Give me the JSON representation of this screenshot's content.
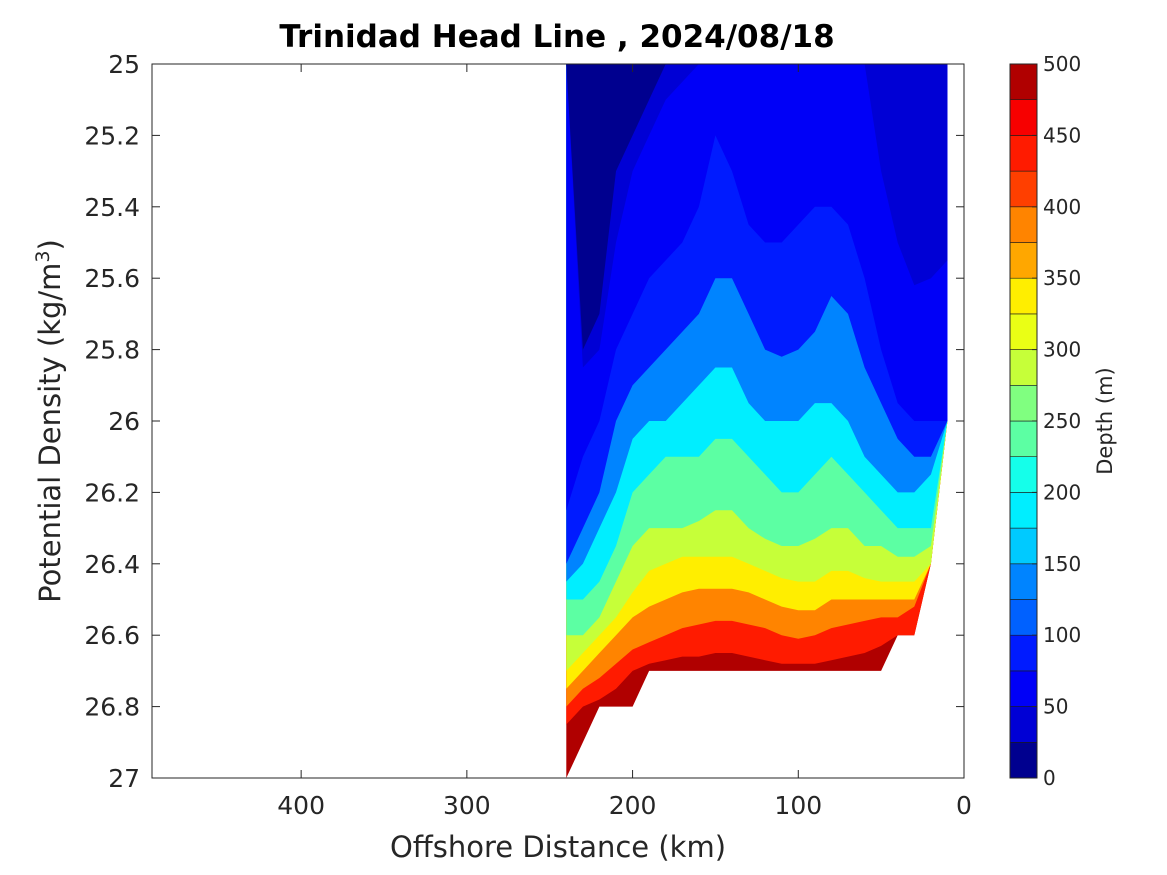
{
  "chart_data": {
    "type": "heatmap",
    "title": "Trinidad Head Line , 2024/08/18",
    "xlabel": "Offshore Distance (km)",
    "ylabel": "Potential Density (kg/m",
    "ylabel_sup": "3",
    "ylabel_close": ")",
    "xlim": [
      490,
      0
    ],
    "ylim": [
      25,
      27
    ],
    "x_reversed": true,
    "y_reversed": true,
    "xticks": [
      400,
      300,
      200,
      100,
      0
    ],
    "xtick_labels": [
      "400",
      "300",
      "200",
      "100",
      "0"
    ],
    "yticks": [
      25,
      25.2,
      25.4,
      25.6,
      25.8,
      26,
      26.2,
      26.4,
      26.6,
      26.8,
      27
    ],
    "ytick_labels": [
      "25",
      "25.2",
      "25.4",
      "25.6",
      "25.8",
      "26",
      "26.2",
      "26.4",
      "26.6",
      "26.8",
      "27"
    ],
    "colorbar": {
      "label": "Depth (m)",
      "range": [
        0,
        500
      ],
      "ticks": [
        0,
        50,
        100,
        150,
        200,
        250,
        300,
        350,
        400,
        450,
        500
      ],
      "tick_labels": [
        "0",
        "50",
        "100",
        "150",
        "200",
        "250",
        "300",
        "350",
        "400",
        "450",
        "500"
      ],
      "levels": [
        0,
        25,
        50,
        75,
        100,
        125,
        150,
        175,
        200,
        225,
        250,
        275,
        300,
        325,
        350,
        375,
        400,
        425,
        450,
        475,
        500
      ],
      "colors": [
        "#00008f",
        "#0000b0",
        "#0000d5",
        "#0000f7",
        "#001bff",
        "#003fff",
        "#0061ff",
        "#0084ff",
        "#00a7ff",
        "#00caff",
        "#00eeff",
        "#15ffea",
        "#39ffc6",
        "#5cffa3",
        "#80ff80",
        "#a3ff5c",
        "#c6ff39",
        "#eaff15",
        "#ffee00",
        "#ffca00",
        "#ffa700",
        "#ff8400",
        "#ff6100",
        "#ff3f00",
        "#ff1b00",
        "#f70000",
        "#d50000",
        "#b00000"
      ]
    },
    "stations_km": [
      240,
      230,
      220,
      210,
      200,
      190,
      180,
      170,
      160,
      150,
      140,
      130,
      120,
      110,
      100,
      90,
      80,
      70,
      60,
      50,
      40,
      30,
      20,
      10
    ],
    "bottom_density": [
      27.0,
      26.9,
      26.8,
      26.8,
      26.8,
      26.7,
      26.7,
      26.7,
      26.7,
      26.7,
      26.7,
      26.7,
      26.7,
      26.7,
      26.7,
      26.7,
      26.7,
      26.7,
      26.7,
      26.7,
      26.6,
      26.6,
      26.4,
      26.0
    ],
    "depth_isolines_m": {
      "25": [
        25.0,
        25.8,
        25.7,
        25.3,
        25.2,
        25.1,
        25.0,
        25.0,
        25.0,
        25.0,
        25.0,
        25.0,
        25.0,
        25.0,
        25.0,
        25.0,
        25.0,
        25.0,
        25.0,
        25.0,
        25.0,
        25.0,
        25.0,
        25.0
      ],
      "50": [
        25.0,
        25.85,
        25.8,
        25.5,
        25.3,
        25.2,
        25.1,
        25.05,
        25.0,
        25.0,
        25.0,
        25.0,
        25.0,
        25.0,
        25.0,
        25.0,
        25.0,
        25.0,
        25.0,
        25.3,
        25.5,
        25.62,
        25.6,
        25.55
      ],
      "75": [
        26.25,
        26.1,
        26.0,
        25.8,
        25.7,
        25.6,
        25.55,
        25.5,
        25.4,
        25.2,
        25.3,
        25.45,
        25.5,
        25.5,
        25.45,
        25.4,
        25.4,
        25.45,
        25.6,
        25.8,
        25.95,
        26.0,
        26.0,
        26.0
      ],
      "100": [
        26.4,
        26.3,
        26.2,
        26.0,
        25.9,
        25.85,
        25.8,
        25.75,
        25.7,
        25.6,
        25.6,
        25.7,
        25.8,
        25.82,
        25.8,
        25.75,
        25.65,
        25.7,
        25.85,
        25.95,
        26.05,
        26.1,
        26.1,
        26.05
      ],
      "150": [
        26.45,
        26.4,
        26.3,
        26.2,
        26.05,
        26.0,
        26.0,
        25.95,
        25.9,
        25.85,
        25.85,
        25.95,
        26.0,
        26.0,
        26.0,
        25.95,
        25.95,
        26.0,
        26.1,
        26.15,
        26.2,
        26.2,
        26.15,
        26.1
      ],
      "200": [
        26.5,
        26.5,
        26.45,
        26.35,
        26.2,
        26.15,
        26.1,
        26.1,
        26.1,
        26.05,
        26.05,
        26.1,
        26.15,
        26.2,
        26.2,
        26.15,
        26.1,
        26.15,
        26.2,
        26.25,
        26.3,
        26.3,
        26.3,
        26.2
      ],
      "250": [
        26.6,
        26.6,
        26.55,
        26.45,
        26.35,
        26.3,
        26.3,
        26.3,
        26.28,
        26.25,
        26.25,
        26.3,
        26.33,
        26.35,
        26.35,
        26.33,
        26.3,
        26.3,
        26.35,
        26.35,
        26.38,
        26.38,
        26.35,
        26.3
      ],
      "300": [
        26.7,
        26.65,
        26.6,
        26.55,
        26.48,
        26.42,
        26.4,
        26.38,
        26.38,
        26.38,
        26.38,
        26.4,
        26.42,
        26.44,
        26.45,
        26.45,
        26.42,
        26.42,
        26.44,
        26.45,
        26.45,
        26.45,
        26.4,
        26.35
      ],
      "350": [
        26.75,
        26.7,
        26.65,
        26.6,
        26.55,
        26.52,
        26.5,
        26.48,
        26.47,
        26.47,
        26.47,
        26.48,
        26.5,
        26.52,
        26.53,
        26.53,
        26.5,
        26.5,
        26.5,
        26.5,
        26.5,
        26.5,
        26.45,
        26.4
      ],
      "400": [
        26.8,
        26.75,
        26.72,
        26.68,
        26.64,
        26.62,
        26.6,
        26.58,
        26.57,
        26.56,
        26.56,
        26.57,
        26.58,
        26.6,
        26.61,
        26.6,
        26.58,
        26.57,
        26.56,
        26.55,
        26.55,
        26.52,
        26.48,
        26.42
      ],
      "450": [
        26.85,
        26.8,
        26.78,
        26.75,
        26.7,
        26.68,
        26.67,
        26.66,
        26.66,
        26.65,
        26.65,
        26.66,
        26.67,
        26.68,
        26.68,
        26.68,
        26.67,
        26.66,
        26.65,
        26.63,
        26.6,
        26.6,
        26.5,
        26.45
      ]
    }
  }
}
